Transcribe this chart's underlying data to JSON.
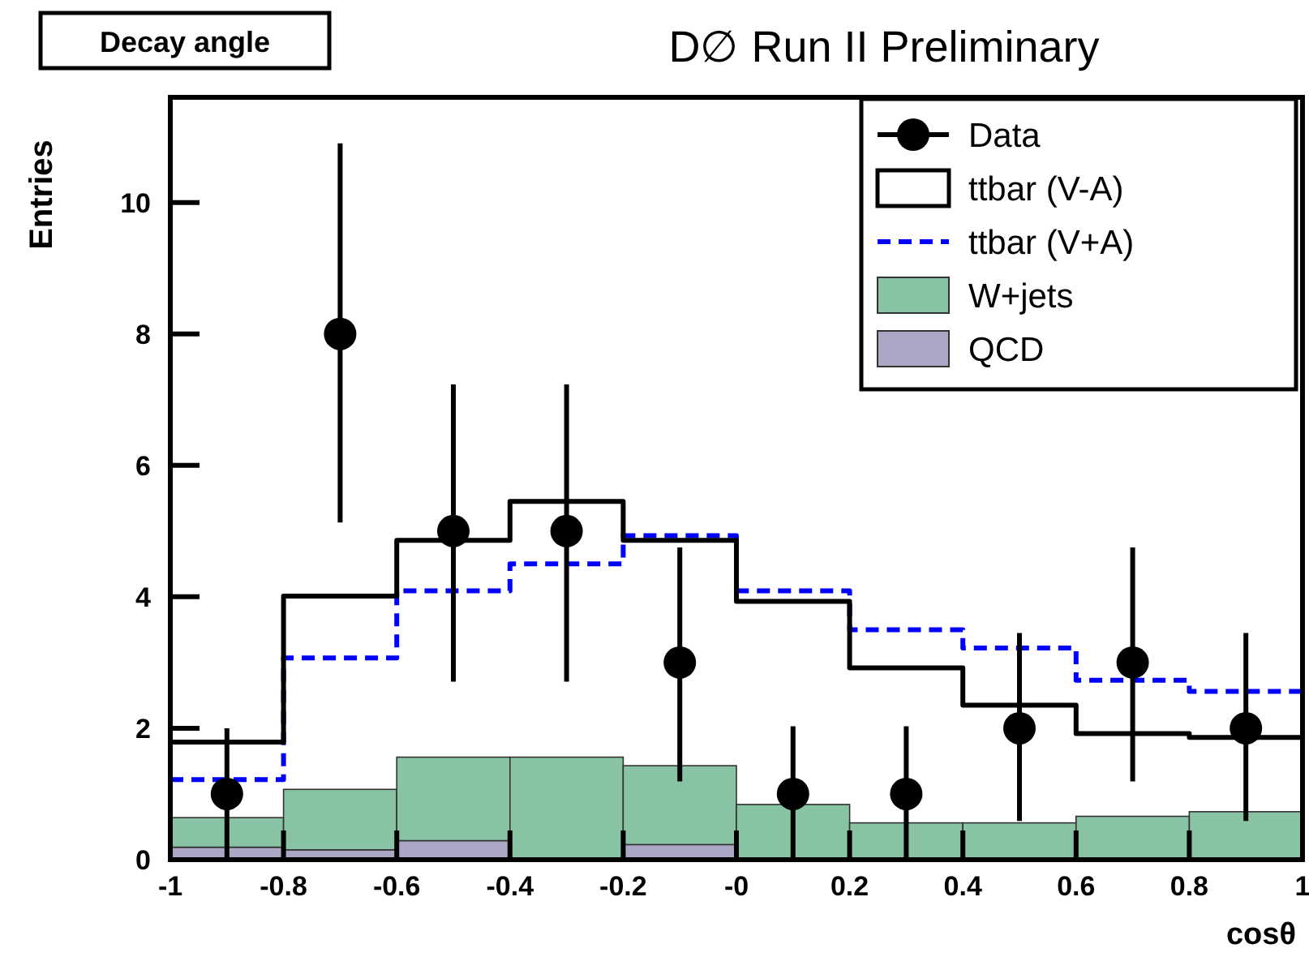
{
  "chart_data": {
    "type": "bar",
    "title": "D∅ Run II Preliminary",
    "annotations": [
      "Decay angle"
    ],
    "xlabel": "cosθ",
    "ylabel": "Entries",
    "x": [
      -0.9,
      -0.7,
      -0.5,
      -0.3,
      -0.1,
      0.1,
      0.3,
      0.5,
      0.7,
      0.9
    ],
    "stacked": true,
    "series": [
      {
        "name": "QCD",
        "color": "#aaa6c4",
        "values": [
          0.19,
          0.15,
          0.29,
          0,
          0.23,
          0,
          0,
          0,
          0,
          0
        ]
      },
      {
        "name": "W+jets",
        "color": "#88c4a4",
        "values": [
          0.45,
          0.92,
          1.27,
          1.56,
          1.2,
          0.84,
          0.56,
          0.56,
          0.66,
          0.73
        ]
      },
      {
        "name": "ttbar (V+A)",
        "type": "step",
        "color": "#0000ff",
        "line_style": "dashed",
        "x": [
          -1,
          -0.8,
          -0.6,
          -0.4,
          -0.2,
          0,
          0.2,
          0.4,
          0.6,
          0.8,
          1
        ],
        "values": [
          1.22,
          3.07,
          4.09,
          4.5,
          4.93,
          4.09,
          3.5,
          3.22,
          2.73,
          2.56,
          2.56
        ]
      },
      {
        "name": "ttbar (V-A)",
        "type": "step",
        "color": "#000000",
        "line_style": "solid",
        "x": [
          -1,
          -0.8,
          -0.6,
          -0.4,
          -0.2,
          0,
          0.2,
          0.4,
          0.6,
          0.8,
          1
        ],
        "values": [
          1.79,
          4.01,
          4.86,
          5.45,
          4.86,
          3.93,
          2.92,
          2.35,
          1.92,
          1.86,
          1.86
        ]
      },
      {
        "name": "Data",
        "type": "scatter",
        "color": "#000000",
        "marker": "circle",
        "x": [
          -0.9,
          -0.7,
          -0.5,
          -0.3,
          -0.1,
          0.1,
          0.3,
          0.5,
          0.7,
          0.9
        ],
        "values": [
          1,
          8,
          5,
          5,
          3,
          1,
          1,
          2,
          3,
          2
        ],
        "errors": [
          [
            0,
            2.0
          ],
          [
            5.13,
            10.9
          ],
          [
            2.71,
            7.23
          ],
          [
            2.71,
            7.23
          ],
          [
            1.19,
            4.75
          ],
          [
            0,
            2.03
          ],
          [
            0,
            2.03
          ],
          [
            0.59,
            3.45
          ],
          [
            1.19,
            4.75
          ],
          [
            0.59,
            3.45
          ]
        ]
      }
    ],
    "legend": "top right",
    "xlim": [
      -1,
      1
    ],
    "xticks": [
      -1,
      -0.8,
      -0.6,
      -0.4,
      -0.2,
      {
        "value": 0,
        "label": "-0"
      },
      0.2,
      0.4,
      0.6,
      0.8,
      1
    ],
    "ylim": [
      0,
      11.6
    ],
    "yticks": [
      0,
      2,
      4,
      6,
      8,
      10
    ]
  }
}
